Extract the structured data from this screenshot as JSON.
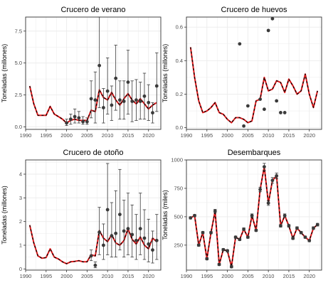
{
  "colors": {
    "fit_line": "#e41a1c",
    "obs_line": "#000000",
    "points": "#3a3a3a",
    "error_bars": "#3a3a3a",
    "grid": "#ebebeb",
    "panel_border": "#333333",
    "tick_label": "#4d4d4d"
  },
  "chart_data": [
    {
      "type": "line",
      "title": "Crucero de verano",
      "ylabel": "Toneladas (millones)",
      "xlabel": "",
      "xlim": [
        1990,
        2023
      ],
      "ylim": [
        -0.2,
        8.6
      ],
      "x_ticks": [
        1990,
        1995,
        2000,
        2005,
        2010,
        2015,
        2020
      ],
      "y_ticks": [
        0.0,
        2.5,
        5.0,
        7.5
      ],
      "y_tick_labels": [
        "0.0",
        "2.5",
        "5.0",
        "7.5"
      ],
      "grid": true,
      "series": [
        {
          "kind": "fitted",
          "style": "red line",
          "x": [
            1991,
            1992,
            1993,
            1994,
            1995,
            1996,
            1997,
            1998,
            1999,
            2000,
            2001,
            2002,
            2003,
            2004,
            2005,
            2006,
            2007,
            2008,
            2009,
            2010,
            2011,
            2012,
            2013,
            2014,
            2015,
            2016,
            2017,
            2018,
            2019,
            2020,
            2021,
            2022
          ],
          "y": [
            3.2,
            1.8,
            0.9,
            0.9,
            0.9,
            1.6,
            1.0,
            0.8,
            0.6,
            0.3,
            0.5,
            0.6,
            0.5,
            0.5,
            0.5,
            1.3,
            1.2,
            2.9,
            2.3,
            2.1,
            2.7,
            2.1,
            1.7,
            2.2,
            2.6,
            2.1,
            1.8,
            2.2,
            1.8,
            1.4,
            1.7,
            1.9
          ]
        },
        {
          "kind": "observed",
          "style": "black dashed line",
          "x": [
            1991,
            1992,
            1993,
            1994,
            1995,
            1996,
            1997,
            1998,
            1999,
            2000,
            2001,
            2002,
            2003,
            2004,
            2005,
            2006,
            2007,
            2008,
            2009,
            2010,
            2011,
            2012,
            2013,
            2014,
            2015,
            2016,
            2017,
            2018,
            2019,
            2020,
            2021,
            2022
          ],
          "y": [
            3.2,
            1.8,
            0.9,
            0.9,
            0.9,
            1.6,
            1.0,
            0.8,
            0.6,
            0.3,
            0.5,
            0.6,
            0.5,
            0.5,
            0.5,
            1.3,
            1.2,
            2.9,
            2.3,
            2.1,
            2.7,
            2.1,
            1.7,
            2.2,
            2.6,
            2.1,
            1.8,
            2.2,
            1.8,
            1.4,
            1.7,
            1.9
          ]
        },
        {
          "kind": "survey",
          "style": "points with error bars",
          "x": [
            2000,
            2001,
            2002,
            2003,
            2004,
            2005,
            2006,
            2007,
            2008,
            2009,
            2010,
            2011,
            2012,
            2013,
            2014,
            2015,
            2016,
            2017,
            2018,
            2019,
            2020,
            2021,
            2022
          ],
          "y": [
            0.3,
            0.6,
            0.8,
            0.7,
            0.4,
            0.4,
            2.2,
            2.1,
            4.8,
            1.5,
            2.8,
            1.7,
            3.8,
            2.1,
            2.0,
            3.5,
            2.0,
            2.1,
            2.0,
            2.4,
            1.9,
            1.1,
            3.2
          ],
          "lo": [
            0.1,
            0.2,
            0.3,
            0.3,
            0.2,
            0.2,
            0.7,
            0.3,
            1.5,
            0.3,
            1.0,
            0.5,
            1.3,
            0.6,
            0.6,
            1.0,
            0.4,
            0.5,
            0.6,
            0.6,
            0.5,
            0.3,
            1.2
          ],
          "hi": [
            0.6,
            1.0,
            1.4,
            1.2,
            0.8,
            0.7,
            3.6,
            4.3,
            8.6,
            3.0,
            5.4,
            3.2,
            6.4,
            3.6,
            3.6,
            6.0,
            3.6,
            3.7,
            3.5,
            4.2,
            3.3,
            1.9,
            5.8
          ]
        }
      ]
    },
    {
      "type": "line",
      "title": "Crucero de huevos",
      "ylabel": "Toneladas (millones)",
      "xlabel": "",
      "xlim": [
        1990,
        2023
      ],
      "ylim": [
        -0.01,
        0.66
      ],
      "x_ticks": [
        1990,
        1995,
        2000,
        2005,
        2010,
        2015,
        2020
      ],
      "y_ticks": [
        0.0,
        0.2,
        0.4,
        0.6
      ],
      "y_tick_labels": [
        "0.0",
        "0.2",
        "0.4",
        "0.6"
      ],
      "grid": true,
      "series": [
        {
          "kind": "fitted",
          "style": "red line",
          "x": [
            1991,
            1992,
            1993,
            1994,
            1995,
            1996,
            1997,
            1998,
            1999,
            2000,
            2001,
            2002,
            2003,
            2004,
            2005,
            2006,
            2007,
            2008,
            2009,
            2010,
            2011,
            2012,
            2013,
            2014,
            2015,
            2016,
            2017,
            2018,
            2019,
            2020,
            2021,
            2022
          ],
          "y": [
            0.48,
            0.3,
            0.16,
            0.09,
            0.1,
            0.12,
            0.15,
            0.09,
            0.08,
            0.05,
            0.03,
            0.06,
            0.06,
            0.05,
            0.03,
            0.04,
            0.16,
            0.17,
            0.3,
            0.22,
            0.23,
            0.28,
            0.27,
            0.21,
            0.29,
            0.25,
            0.2,
            0.22,
            0.32,
            0.2,
            0.12,
            0.22
          ]
        },
        {
          "kind": "observed",
          "style": "black dashed line",
          "x": [
            1991,
            1992,
            1993,
            1994,
            1995,
            1996,
            1997,
            1998,
            1999,
            2000,
            2001,
            2002,
            2003,
            2004,
            2005,
            2006,
            2007,
            2008,
            2009,
            2010,
            2011,
            2012,
            2013,
            2014,
            2015,
            2016,
            2017,
            2018,
            2019,
            2020,
            2021,
            2022
          ],
          "y": [
            0.48,
            0.3,
            0.16,
            0.09,
            0.1,
            0.12,
            0.15,
            0.09,
            0.08,
            0.05,
            0.03,
            0.06,
            0.06,
            0.05,
            0.03,
            0.04,
            0.16,
            0.17,
            0.3,
            0.22,
            0.23,
            0.28,
            0.27,
            0.21,
            0.29,
            0.25,
            0.2,
            0.22,
            0.32,
            0.2,
            0.12,
            0.22
          ]
        },
        {
          "kind": "survey",
          "style": "points",
          "x": [
            2003,
            2004,
            2005,
            2008,
            2009,
            2010,
            2011,
            2012,
            2013,
            2014
          ],
          "y": [
            0.5,
            0.01,
            0.13,
            0.17,
            0.11,
            0.58,
            0.65,
            0.16,
            0.09,
            0.09
          ]
        }
      ]
    },
    {
      "type": "line",
      "title": "Crucero de otoño",
      "ylabel": "Toneladas (millones)",
      "xlabel": "",
      "xlim": [
        1990,
        2023
      ],
      "ylim": [
        -0.05,
        4.6
      ],
      "x_ticks": [
        1990,
        1995,
        2000,
        2005,
        2010,
        2015,
        2020
      ],
      "y_ticks": [
        0,
        1,
        2,
        3,
        4
      ],
      "y_tick_labels": [
        "0",
        "1",
        "2",
        "3",
        "4"
      ],
      "grid": true,
      "series": [
        {
          "kind": "fitted",
          "style": "red line",
          "x": [
            1991,
            1992,
            1993,
            1994,
            1995,
            1996,
            1997,
            1998,
            1999,
            2000,
            2001,
            2002,
            2003,
            2004,
            2005,
            2006,
            2007,
            2008,
            2009,
            2010,
            2011,
            2012,
            2013,
            2014,
            2015,
            2016,
            2017,
            2018,
            2019,
            2020,
            2021,
            2022
          ],
          "y": [
            1.85,
            1.1,
            0.55,
            0.45,
            0.48,
            0.85,
            0.5,
            0.42,
            0.3,
            0.22,
            0.3,
            0.32,
            0.35,
            0.3,
            0.3,
            0.6,
            0.55,
            1.62,
            1.3,
            1.15,
            1.45,
            1.1,
            1.0,
            1.2,
            1.7,
            1.25,
            1.05,
            1.35,
            1.0,
            0.85,
            1.3,
            1.15
          ]
        },
        {
          "kind": "observed",
          "style": "black dashed line",
          "x": [
            1991,
            1992,
            1993,
            1994,
            1995,
            1996,
            1997,
            1998,
            1999,
            2000,
            2001,
            2002,
            2003,
            2004,
            2005,
            2006,
            2007,
            2008,
            2009,
            2010,
            2011,
            2012,
            2013,
            2014,
            2015,
            2016,
            2017,
            2018,
            2019,
            2020,
            2021,
            2022
          ],
          "y": [
            1.85,
            1.1,
            0.55,
            0.45,
            0.48,
            0.85,
            0.5,
            0.42,
            0.3,
            0.22,
            0.3,
            0.32,
            0.35,
            0.3,
            0.3,
            0.6,
            0.55,
            1.62,
            1.3,
            1.15,
            1.45,
            1.1,
            1.0,
            1.2,
            1.7,
            1.25,
            1.05,
            1.35,
            1.0,
            0.85,
            1.3,
            1.15
          ]
        },
        {
          "kind": "survey",
          "style": "points with error bars",
          "x": [
            2006,
            2007,
            2008,
            2009,
            2010,
            2011,
            2012,
            2013,
            2014,
            2015,
            2016,
            2017,
            2018,
            2019,
            2020,
            2021,
            2022
          ],
          "y": [
            0.55,
            0.15,
            1.55,
            1.0,
            2.5,
            1.4,
            1.5,
            2.3,
            1.6,
            1.7,
            1.45,
            1.2,
            1.7,
            1.3,
            1.05,
            0.8,
            1.2
          ],
          "lo": [
            0.35,
            0.05,
            0.6,
            0.4,
            0.6,
            0.5,
            0.5,
            0.8,
            0.5,
            0.6,
            0.5,
            0.4,
            0.6,
            0.4,
            0.3,
            0.25,
            0.4
          ],
          "hi": [
            0.8,
            0.3,
            2.6,
            1.9,
            4.45,
            2.8,
            3.3,
            4.2,
            2.9,
            3.2,
            2.7,
            2.3,
            3.2,
            2.5,
            2.1,
            1.6,
            2.3
          ]
        }
      ]
    },
    {
      "type": "line",
      "title": "Desembarques",
      "ylabel": "Toneladas (miles)",
      "xlabel": "",
      "xlim": [
        1990,
        2023
      ],
      "ylim": [
        30,
        1000
      ],
      "x_ticks": [
        1990,
        1995,
        2000,
        2005,
        2010,
        2015,
        2020
      ],
      "y_ticks": [
        250,
        500,
        750,
        1000
      ],
      "y_tick_labels": [
        "250",
        "500",
        "750",
        "1000"
      ],
      "grid": true,
      "series": [
        {
          "kind": "fitted",
          "style": "red line",
          "x": [
            1991,
            1992,
            1993,
            1994,
            1995,
            1996,
            1997,
            1998,
            1999,
            2000,
            2001,
            2002,
            2003,
            2004,
            2005,
            2006,
            2007,
            2008,
            2009,
            2010,
            2011,
            2012,
            2013,
            2014,
            2015,
            2016,
            2017,
            2018,
            2019,
            2020,
            2021,
            2022
          ],
          "y": [
            490,
            510,
            250,
            360,
            130,
            360,
            550,
            80,
            210,
            200,
            60,
            320,
            300,
            390,
            320,
            510,
            380,
            740,
            940,
            620,
            820,
            860,
            420,
            510,
            420,
            310,
            400,
            360,
            320,
            290,
            400,
            430
          ]
        },
        {
          "kind": "observed",
          "style": "black dashed line",
          "x": [
            1991,
            1992,
            1993,
            1994,
            1995,
            1996,
            1997,
            1998,
            1999,
            2000,
            2001,
            2002,
            2003,
            2004,
            2005,
            2006,
            2007,
            2008,
            2009,
            2010,
            2011,
            2012,
            2013,
            2014,
            2015,
            2016,
            2017,
            2018,
            2019,
            2020,
            2021,
            2022
          ],
          "y": [
            490,
            510,
            250,
            360,
            130,
            360,
            550,
            80,
            210,
            200,
            60,
            320,
            300,
            390,
            320,
            510,
            380,
            740,
            940,
            620,
            820,
            860,
            420,
            510,
            420,
            310,
            400,
            360,
            320,
            290,
            400,
            430
          ]
        },
        {
          "kind": "catch",
          "style": "points with error bars",
          "x": [
            1991,
            1992,
            1993,
            1994,
            1995,
            1996,
            1997,
            1998,
            1999,
            2000,
            2001,
            2002,
            2003,
            2004,
            2005,
            2006,
            2007,
            2008,
            2009,
            2010,
            2011,
            2012,
            2013,
            2014,
            2015,
            2016,
            2017,
            2018,
            2019,
            2020,
            2021,
            2022
          ],
          "y": [
            490,
            510,
            250,
            360,
            130,
            360,
            550,
            80,
            210,
            200,
            60,
            320,
            300,
            390,
            320,
            510,
            380,
            740,
            940,
            620,
            820,
            860,
            420,
            510,
            420,
            310,
            400,
            360,
            320,
            290,
            400,
            430
          ],
          "lo": [
            480,
            500,
            240,
            350,
            120,
            350,
            535,
            70,
            200,
            190,
            50,
            310,
            290,
            378,
            310,
            495,
            370,
            720,
            910,
            600,
            795,
            835,
            408,
            495,
            408,
            300,
            388,
            350,
            310,
            280,
            388,
            418
          ],
          "hi": [
            500,
            520,
            260,
            370,
            140,
            370,
            565,
            90,
            220,
            210,
            70,
            330,
            310,
            402,
            330,
            525,
            390,
            760,
            970,
            640,
            845,
            885,
            432,
            525,
            432,
            320,
            412,
            370,
            330,
            300,
            412,
            442
          ]
        }
      ]
    }
  ]
}
